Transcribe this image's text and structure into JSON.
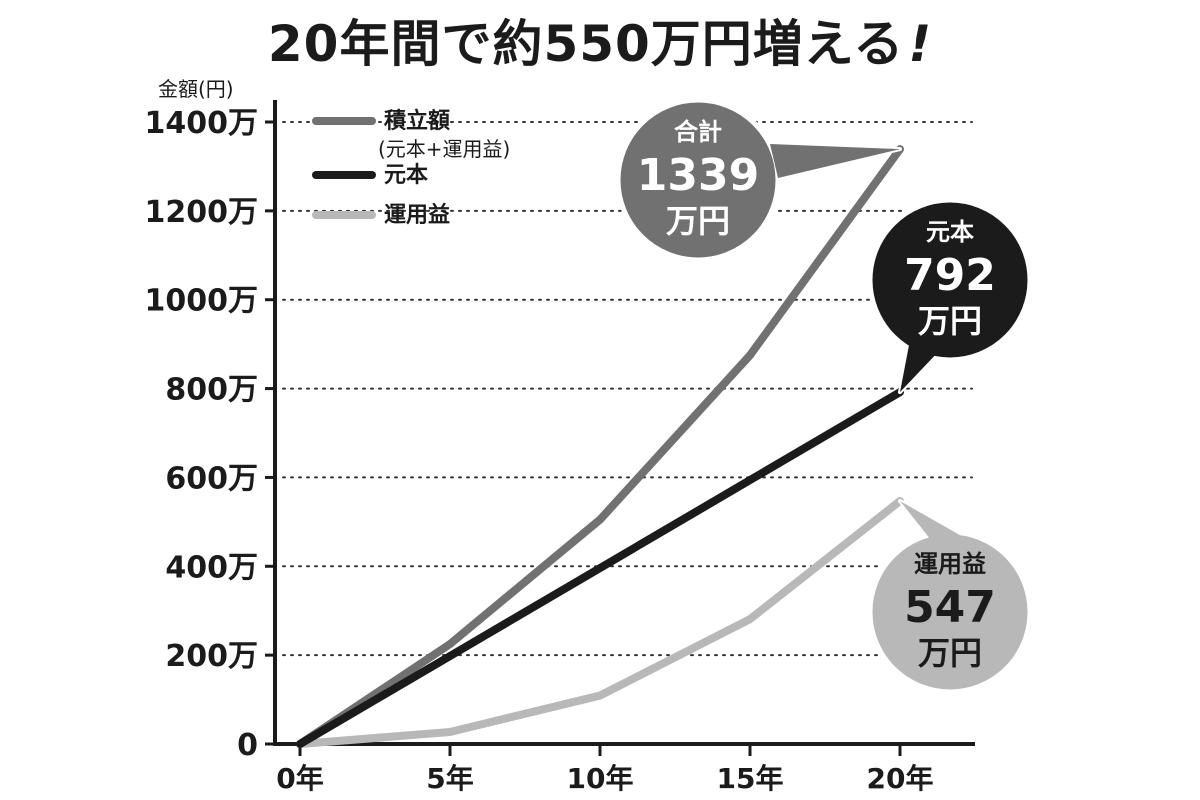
{
  "title": "20年間で約550万円増える",
  "title_mark": "!",
  "chart_data": {
    "type": "line",
    "ylabel": "金額(円)",
    "ylim": [
      0,
      1400
    ],
    "yticks": [
      0,
      200,
      400,
      600,
      800,
      1000,
      1200,
      1400
    ],
    "ytick_labels": [
      "0",
      "200万",
      "400万",
      "600万",
      "800万",
      "1000万",
      "1200万",
      "1400万"
    ],
    "x": [
      0,
      5,
      10,
      15,
      20
    ],
    "xtick_labels": [
      "0年",
      "5年",
      "10年",
      "15年",
      "20年"
    ],
    "grid": "horizontal-dotted",
    "legend_position": "top-left",
    "series": [
      {
        "name": "積立額",
        "name_sub": "(元本+運用益)",
        "color": "#717171",
        "values": [
          0,
          225,
          505,
          875,
          1339
        ]
      },
      {
        "name": "元本",
        "color": "#1b1b1b",
        "values": [
          0,
          198,
          396,
          594,
          792
        ]
      },
      {
        "name": "運用益",
        "color": "#b8b8b8",
        "values": [
          0,
          27,
          109,
          281,
          547
        ]
      }
    ],
    "annotations": [
      {
        "label": "合計",
        "value": "1339",
        "unit": "万円",
        "color": "#717171",
        "text_color": "#ffffff"
      },
      {
        "label": "元本",
        "value": "792",
        "unit": "万円",
        "color": "#1b1b1b",
        "text_color": "#ffffff"
      },
      {
        "label": "運用益",
        "value": "547",
        "unit": "万円",
        "color": "#b8b8b8",
        "text_color": "#1b1b1b"
      }
    ]
  }
}
